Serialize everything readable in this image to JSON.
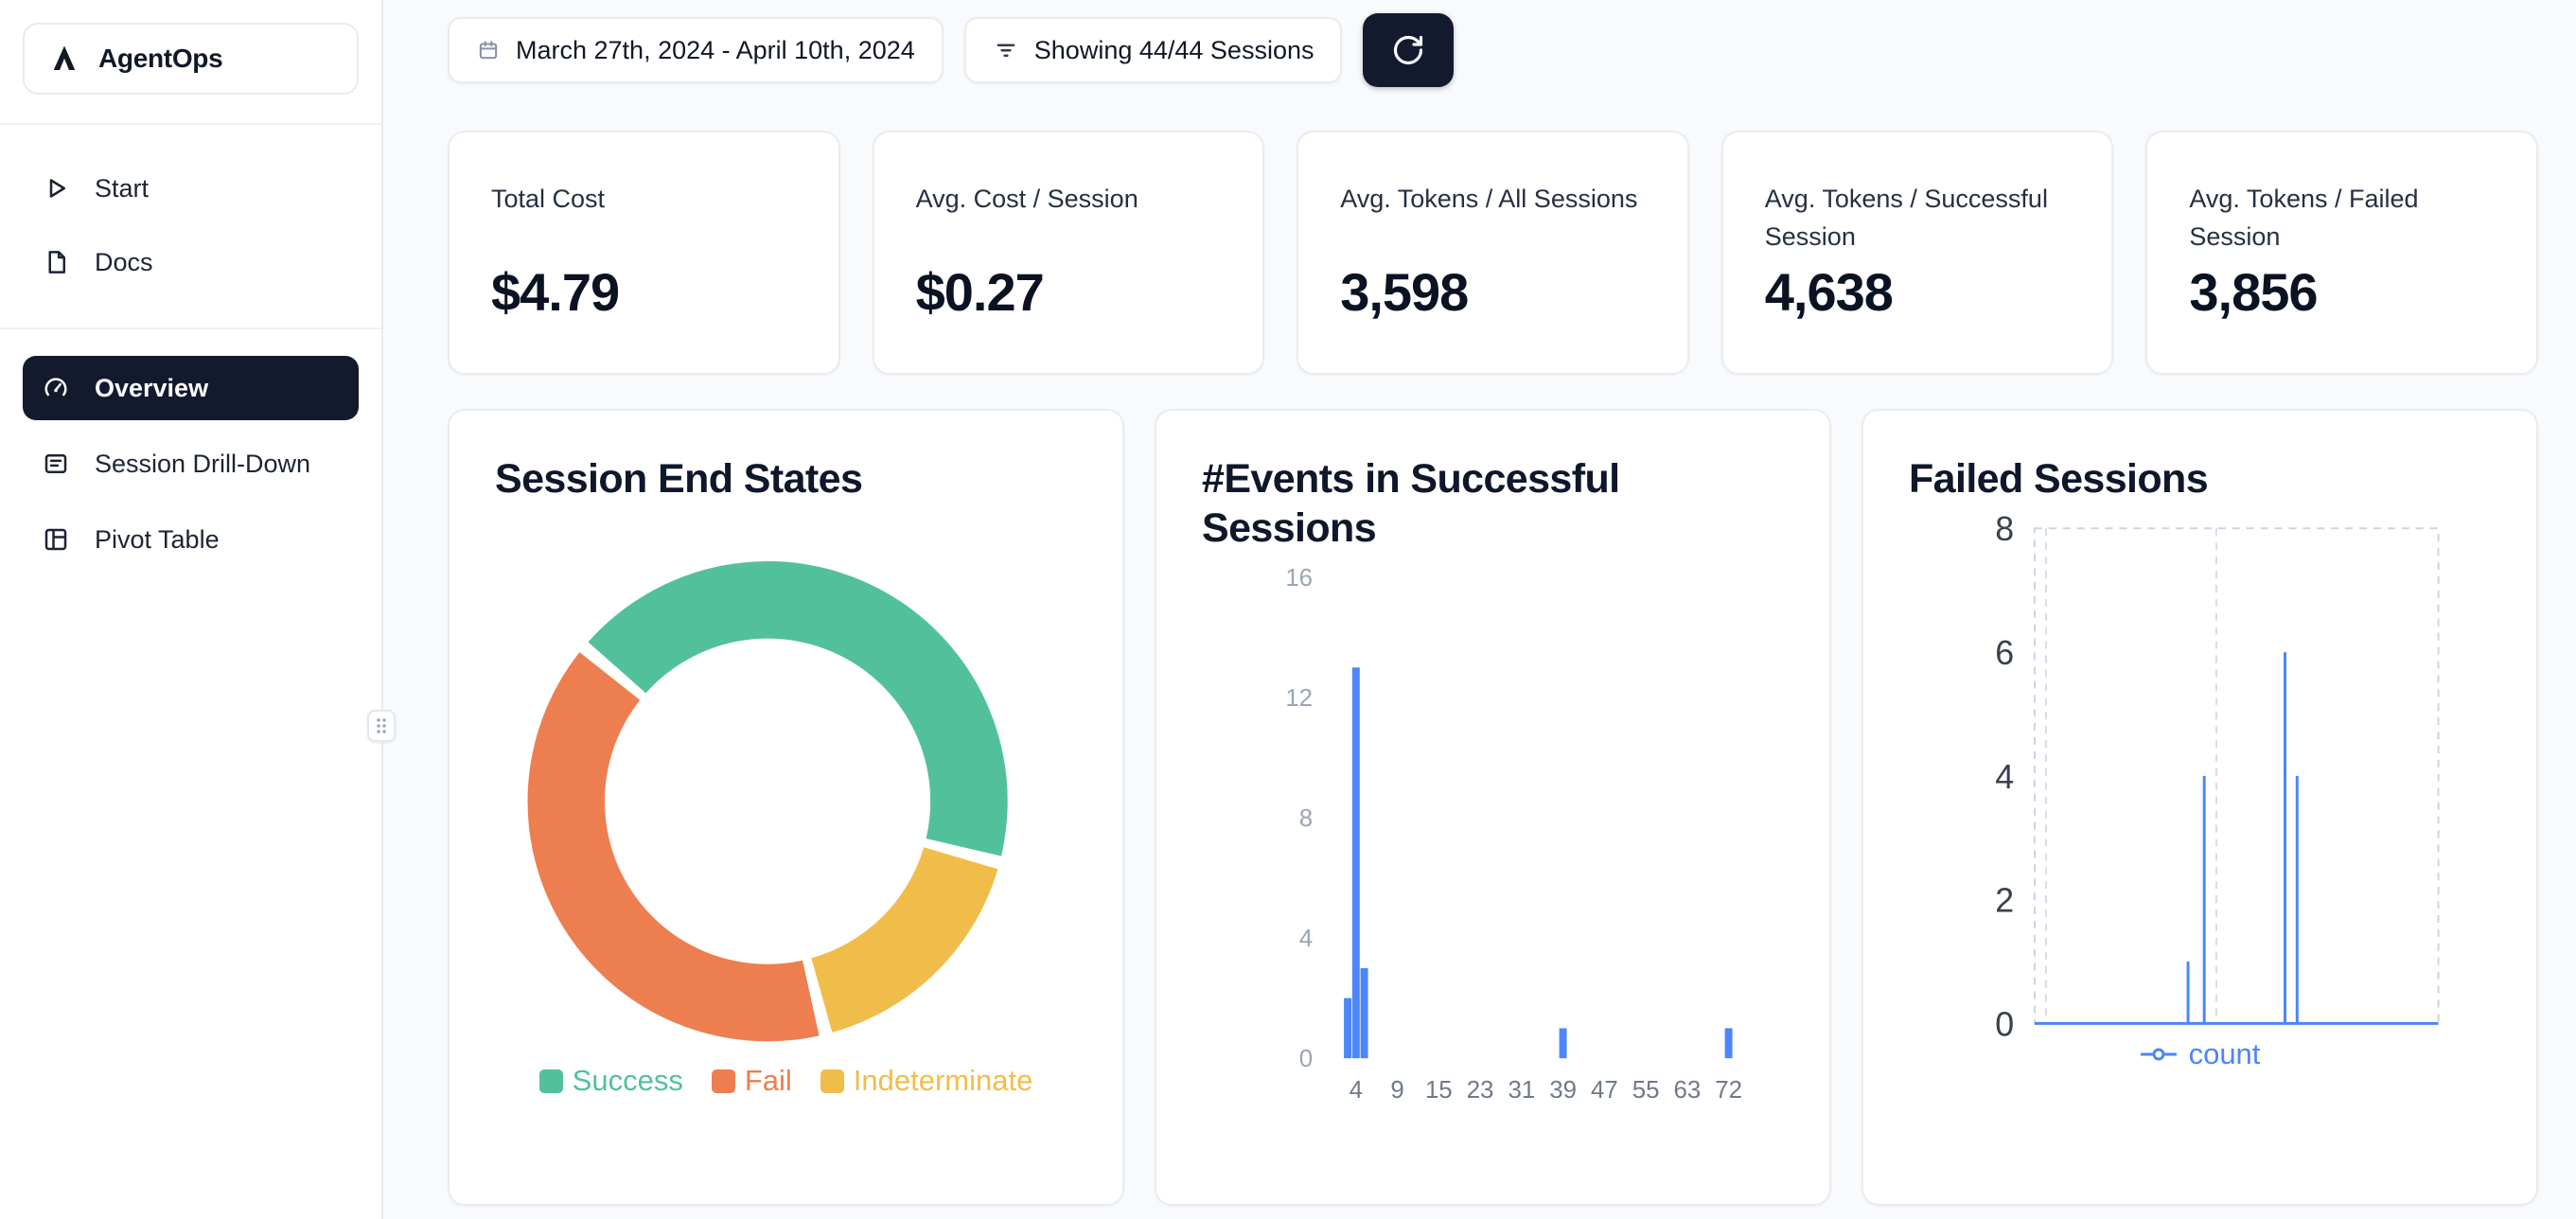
{
  "app": {
    "name": "AgentOps"
  },
  "colors": {
    "accent_dark": "#141a2e",
    "chart_blue": "#4c86f8",
    "success_green": "#52c19b",
    "fail_orange": "#ed7e4f",
    "indeterminate_yellow": "#f1bd4a",
    "page_background": "#f8fafc"
  },
  "sidebar": {
    "items_top": [
      {
        "label": "Start",
        "icon": "play-icon"
      },
      {
        "label": "Docs",
        "icon": "document-icon"
      }
    ],
    "items_main": [
      {
        "label": "Overview",
        "icon": "gauge-icon",
        "active": true
      },
      {
        "label": "Session Drill-Down",
        "icon": "list-icon",
        "active": false
      },
      {
        "label": "Pivot Table",
        "icon": "table-icon",
        "active": false
      }
    ]
  },
  "topbar": {
    "date_range": "March 27th, 2024 - April 10th, 2024",
    "filter_label": "Showing 44/44 Sessions",
    "refresh_icon": "refresh-icon"
  },
  "stats": [
    {
      "label": "Total Cost",
      "value": "$4.79"
    },
    {
      "label": "Avg. Cost / Session",
      "value": "$0.27"
    },
    {
      "label": "Avg. Tokens / All Sessions",
      "value": "3,598"
    },
    {
      "label": "Avg. Tokens / Successful Session",
      "value": "4,638"
    },
    {
      "label": "Avg. Tokens / Failed Session",
      "value": "3,856"
    }
  ],
  "chart_data": [
    {
      "type": "pie",
      "title": "Session End States",
      "donut": true,
      "start_angle": -50,
      "clockwise_order": [
        "Success",
        "Indeterminate",
        "Fail"
      ],
      "slices": [
        {
          "label": "Success",
          "percent": 43,
          "color": "#52c19b"
        },
        {
          "label": "Fail",
          "percent": 40,
          "color": "#ed7e4f"
        },
        {
          "label": "Indeterminate",
          "percent": 17,
          "color": "#f1bd4a"
        }
      ],
      "legend_position": "bottom"
    },
    {
      "type": "bar",
      "title": "#Events in Successful Sessions",
      "x_ticks": [
        4,
        9,
        15,
        23,
        31,
        39,
        47,
        55,
        63,
        72
      ],
      "y_ticks": [
        0,
        4,
        8,
        12,
        16
      ],
      "ylim": [
        0,
        16
      ],
      "bars": [
        {
          "x": 3,
          "count": 2
        },
        {
          "x": 4,
          "count": 13
        },
        {
          "x": 5,
          "count": 3
        },
        {
          "x": 39,
          "count": 1
        },
        {
          "x": 72,
          "count": 1
        }
      ],
      "bar_color": "#4c86f8",
      "grid": false
    },
    {
      "type": "line",
      "title": "Failed Sessions",
      "y_ticks": [
        0,
        2,
        4,
        6,
        8
      ],
      "ylim": [
        0,
        8
      ],
      "grid_dashed": true,
      "series": [
        {
          "name": "count",
          "color": "#4c86f8",
          "points": [
            {
              "x_frac": 0.38,
              "y": 1
            },
            {
              "x_frac": 0.42,
              "y": 4
            },
            {
              "x_frac": 0.62,
              "y": 6
            },
            {
              "x_frac": 0.65,
              "y": 4
            }
          ]
        }
      ],
      "legend_position": "bottom"
    }
  ]
}
